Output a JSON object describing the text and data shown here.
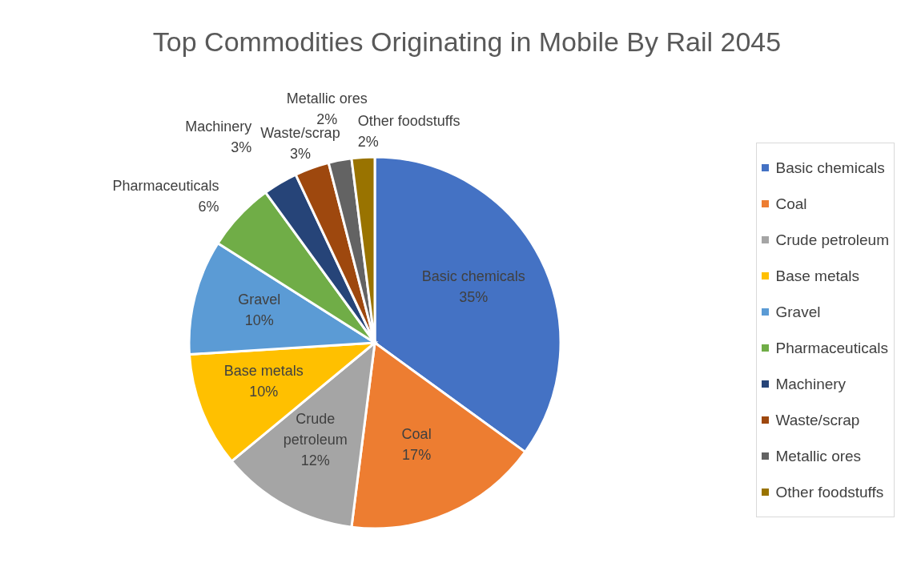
{
  "chart_data": {
    "type": "pie",
    "title": "Top Commodities Originating in Mobile By Rail 2045",
    "categories": [
      "Basic chemicals",
      "Coal",
      "Crude petroleum",
      "Base metals",
      "Gravel",
      "Pharmaceuticals",
      "Machinery",
      "Waste/scrap",
      "Metallic ores",
      "Other foodstuffs"
    ],
    "values": [
      35,
      17,
      12,
      10,
      10,
      6,
      3,
      3,
      2,
      2
    ],
    "value_labels": [
      "35%",
      "17%",
      "12%",
      "10%",
      "10%",
      "6%",
      "3%",
      "3%",
      "2%",
      "2%"
    ],
    "colors": [
      "#4472c4",
      "#ed7d31",
      "#a5a5a5",
      "#ffc000",
      "#5b9bd5",
      "#70ad47",
      "#264478",
      "#9e480e",
      "#636363",
      "#997300"
    ],
    "legend": "right"
  }
}
